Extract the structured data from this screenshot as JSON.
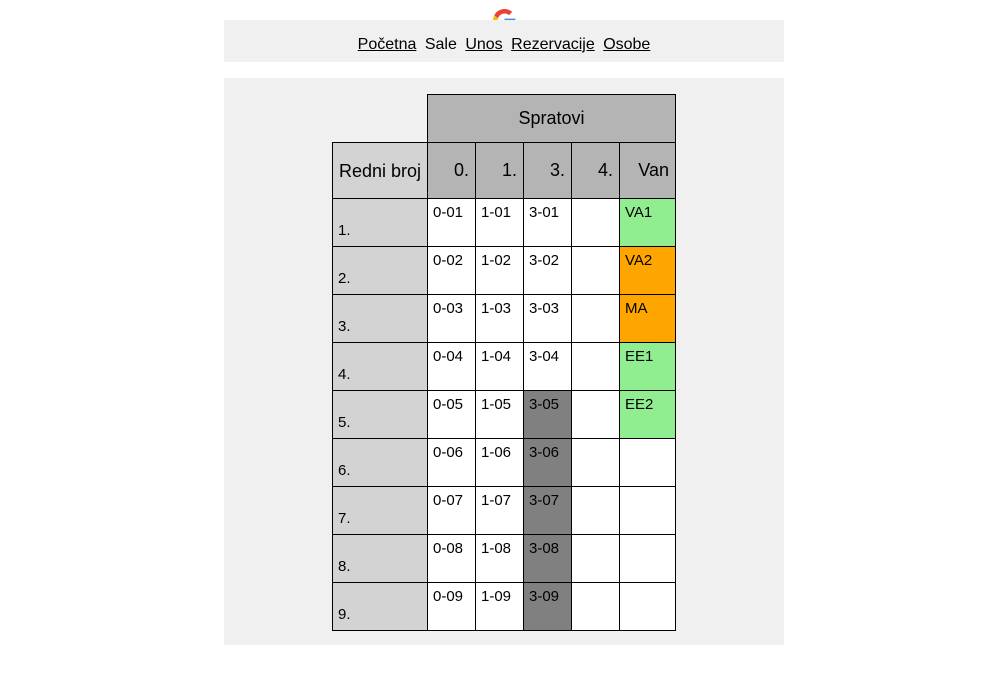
{
  "nav": {
    "items": [
      {
        "label": "Početna",
        "link": true
      },
      {
        "label": "Sale",
        "link": false
      },
      {
        "label": "Unos",
        "link": true
      },
      {
        "label": "Rezervacije",
        "link": true
      },
      {
        "label": "Osobe",
        "link": true
      }
    ]
  },
  "table": {
    "group_header": "Spratovi",
    "row_header": "Redni broj",
    "floor_headers": [
      "0.",
      "1.",
      "3.",
      "4.",
      "Van"
    ],
    "rows": [
      {
        "num": "1.",
        "cells": [
          "0-01",
          "1-01",
          "3-01",
          "",
          "VA1"
        ]
      },
      {
        "num": "2.",
        "cells": [
          "0-02",
          "1-02",
          "3-02",
          "",
          "VA2"
        ]
      },
      {
        "num": "3.",
        "cells": [
          "0-03",
          "1-03",
          "3-03",
          "",
          "MA"
        ]
      },
      {
        "num": "4.",
        "cells": [
          "0-04",
          "1-04",
          "3-04",
          "",
          "EE1"
        ]
      },
      {
        "num": "5.",
        "cells": [
          "0-05",
          "1-05",
          "3-05",
          "",
          "EE2"
        ]
      },
      {
        "num": "6.",
        "cells": [
          "0-06",
          "1-06",
          "3-06",
          "",
          ""
        ]
      },
      {
        "num": "7.",
        "cells": [
          "0-07",
          "1-07",
          "3-07",
          "",
          ""
        ]
      },
      {
        "num": "8.",
        "cells": [
          "0-08",
          "1-08",
          "3-08",
          "",
          ""
        ]
      },
      {
        "num": "9.",
        "cells": [
          "0-09",
          "1-09",
          "3-09",
          "",
          ""
        ]
      }
    ]
  },
  "colors": {
    "occupied": "#808080",
    "green": "#90ee90",
    "orange": "#ffa500"
  },
  "icons": {
    "logo": "google-g-icon"
  }
}
